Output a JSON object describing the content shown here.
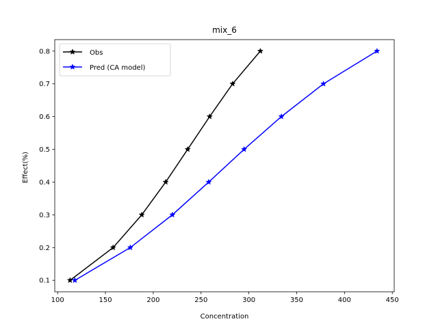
{
  "chart_data": {
    "type": "line",
    "title": "mix_6",
    "xlabel": "Concentration",
    "ylabel": "Effect(%)",
    "xlim": [
      97,
      452
    ],
    "ylim": [
      0.065,
      0.835
    ],
    "xticks": [
      100,
      150,
      200,
      250,
      300,
      350,
      400,
      450
    ],
    "yticks": [
      0.1,
      0.2,
      0.3,
      0.4,
      0.5,
      0.6,
      0.7,
      0.8
    ],
    "xtick_labels": [
      "100",
      "150",
      "200",
      "250",
      "300",
      "350",
      "400",
      "450"
    ],
    "ytick_labels": [
      "0.1",
      "0.2",
      "0.3",
      "0.4",
      "0.5",
      "0.6",
      "0.7",
      "0.8"
    ],
    "grid": false,
    "legend_position": "top-left",
    "marker": "star",
    "series": [
      {
        "name": "Obs",
        "color": "#000000",
        "x": [
          113,
          158,
          188,
          213,
          236,
          259,
          283,
          312
        ],
        "y": [
          0.1,
          0.2,
          0.3,
          0.4,
          0.5,
          0.6,
          0.7,
          0.8
        ]
      },
      {
        "name": "Pred (CA model)",
        "color": "#0000ff",
        "x": [
          118,
          176,
          220,
          258,
          295,
          334,
          378,
          434
        ],
        "y": [
          0.1,
          0.2,
          0.3,
          0.4,
          0.5,
          0.6,
          0.7,
          0.8
        ]
      }
    ]
  }
}
